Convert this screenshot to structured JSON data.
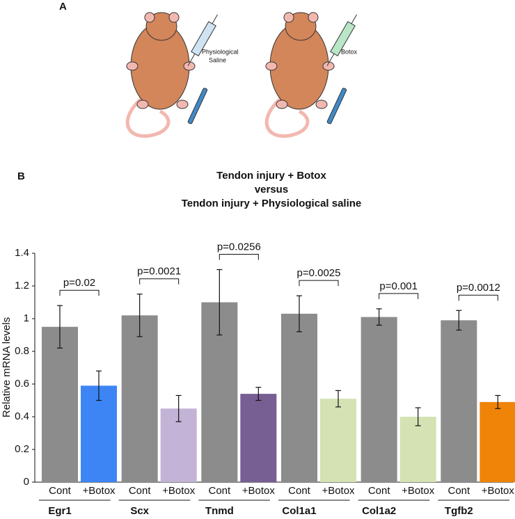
{
  "panel_a": {
    "label": "A",
    "syringe_labels": [
      [
        "Physiological",
        "Saline"
      ],
      [
        "Botox"
      ]
    ]
  },
  "chart_data": {
    "type": "grouped_bar_error",
    "panel_label": "B",
    "title": [
      "Tendon injury + Botox",
      "versus",
      "Tendon injury + Physiological saline"
    ],
    "y_label": "Relative mRNA levels",
    "ylim": [
      0,
      1.4
    ],
    "yticks": [
      0,
      0.2,
      0.4,
      0.6,
      0.8,
      1,
      1.2,
      1.4
    ],
    "groups": [
      {
        "name": "Egr1",
        "p_label": "p=0.02",
        "bars": [
          {
            "label": "Cont",
            "value": 0.95,
            "error": 0.13,
            "color": "#8c8c8c"
          },
          {
            "label": "+Botox",
            "value": 0.59,
            "error": 0.09,
            "color": "#3d85f5"
          }
        ]
      },
      {
        "name": "Scx",
        "p_label": "p=0.0021",
        "bars": [
          {
            "label": "Cont",
            "value": 1.02,
            "error": 0.13,
            "color": "#8c8c8c"
          },
          {
            "label": "+Botox",
            "value": 0.45,
            "error": 0.08,
            "color": "#c3b3d6"
          }
        ]
      },
      {
        "name": "Tnmd",
        "p_label": "p=0.0256",
        "bars": [
          {
            "label": "Cont",
            "value": 1.1,
            "error": 0.2,
            "color": "#8c8c8c"
          },
          {
            "label": "+Botox",
            "value": 0.54,
            "error": 0.04,
            "color": "#775e93"
          }
        ]
      },
      {
        "name": "Col1a1",
        "p_label": "p=0.0025",
        "bars": [
          {
            "label": "Cont",
            "value": 1.03,
            "error": 0.11,
            "color": "#8c8c8c"
          },
          {
            "label": "+Botox",
            "value": 0.51,
            "error": 0.05,
            "color": "#d4e2b4"
          }
        ]
      },
      {
        "name": "Col1a2",
        "p_label": "p=0.001",
        "bars": [
          {
            "label": "Cont",
            "value": 1.01,
            "error": 0.05,
            "color": "#8c8c8c"
          },
          {
            "label": "+Botox",
            "value": 0.4,
            "error": 0.055,
            "color": "#d4e2b4"
          }
        ]
      },
      {
        "name": "Tgfb2",
        "p_label": "p=0.0012",
        "bars": [
          {
            "label": "Cont",
            "value": 0.99,
            "error": 0.06,
            "color": "#8c8c8c"
          },
          {
            "label": "+Botox",
            "value": 0.49,
            "error": 0.04,
            "color": "#ef8409"
          }
        ]
      }
    ]
  }
}
